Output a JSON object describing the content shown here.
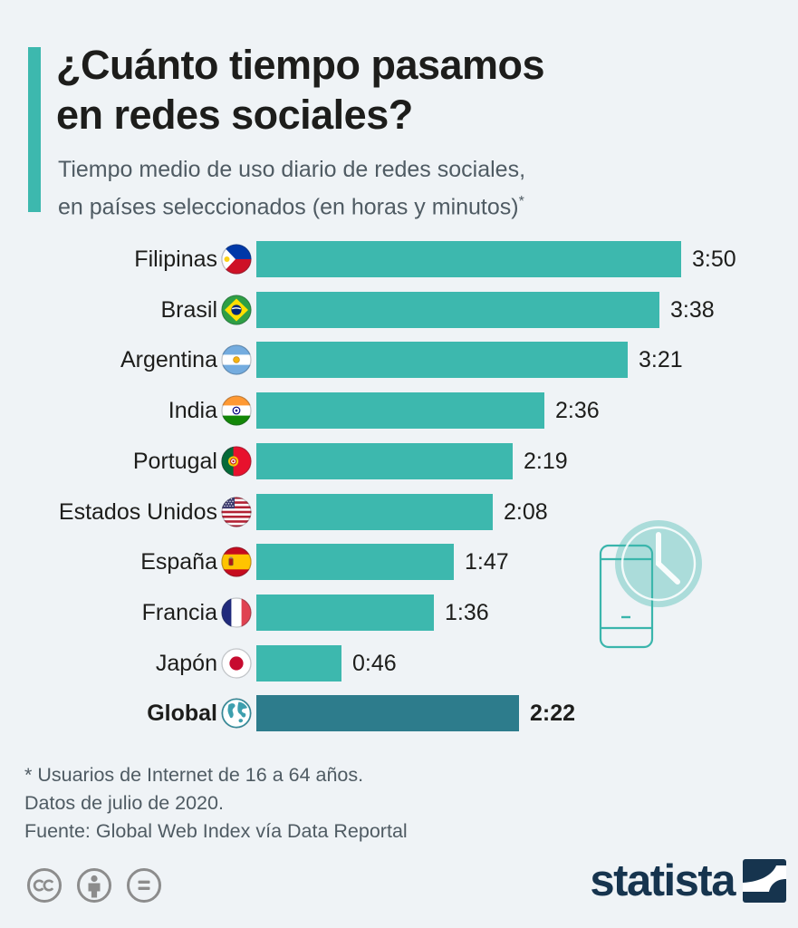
{
  "page": {
    "background": "#eff3f6"
  },
  "header": {
    "accent_color": "#3db8ae",
    "title_lines": [
      "¿Cuánto tiempo pasamos",
      "en redes sociales?"
    ],
    "subtitle_lines": [
      "Tiempo medio de uso diario de redes sociales,",
      "en países seleccionados (en horas y minutos)"
    ],
    "footnote_marker": "*"
  },
  "chart_data": {
    "type": "bar",
    "orientation": "horizontal",
    "title": "¿Cuánto tiempo pasamos en redes sociales?",
    "subtitle": "Tiempo medio de uso diario de redes sociales, en países seleccionados (en horas y minutos)*",
    "unit": "horas:minutos",
    "categories": [
      "Filipinas",
      "Brasil",
      "Argentina",
      "India",
      "Portugal",
      "Estados Unidos",
      "España",
      "Francia",
      "Japón",
      "Global"
    ],
    "values": [
      "3:50",
      "3:38",
      "3:21",
      "2:36",
      "2:19",
      "2:08",
      "1:47",
      "1:36",
      "0:46",
      "2:22"
    ],
    "values_minutes": [
      230,
      218,
      201,
      156,
      139,
      128,
      107,
      96,
      46,
      142
    ],
    "flags": [
      "philippines",
      "brazil",
      "argentina",
      "india",
      "portugal",
      "usa",
      "spain",
      "france",
      "japan",
      "globe"
    ],
    "highlight_index": 9,
    "xlim_minutes": [
      0,
      230
    ],
    "bar_color": "#3db8ae",
    "highlight_bar_color": "#2d7c8c",
    "grid": false,
    "legend": false
  },
  "footnotes": [
    "* Usuarios de Internet de 16 a 64 años.",
    "Datos de julio de 2020.",
    "Fuente: Global Web Index vía Data Reportal"
  ],
  "footer": {
    "license_icons": [
      "cc-icon",
      "cc-by-icon",
      "cc-nd-icon"
    ],
    "brand_wordmark": "statista",
    "brand_color": "#16344e"
  }
}
